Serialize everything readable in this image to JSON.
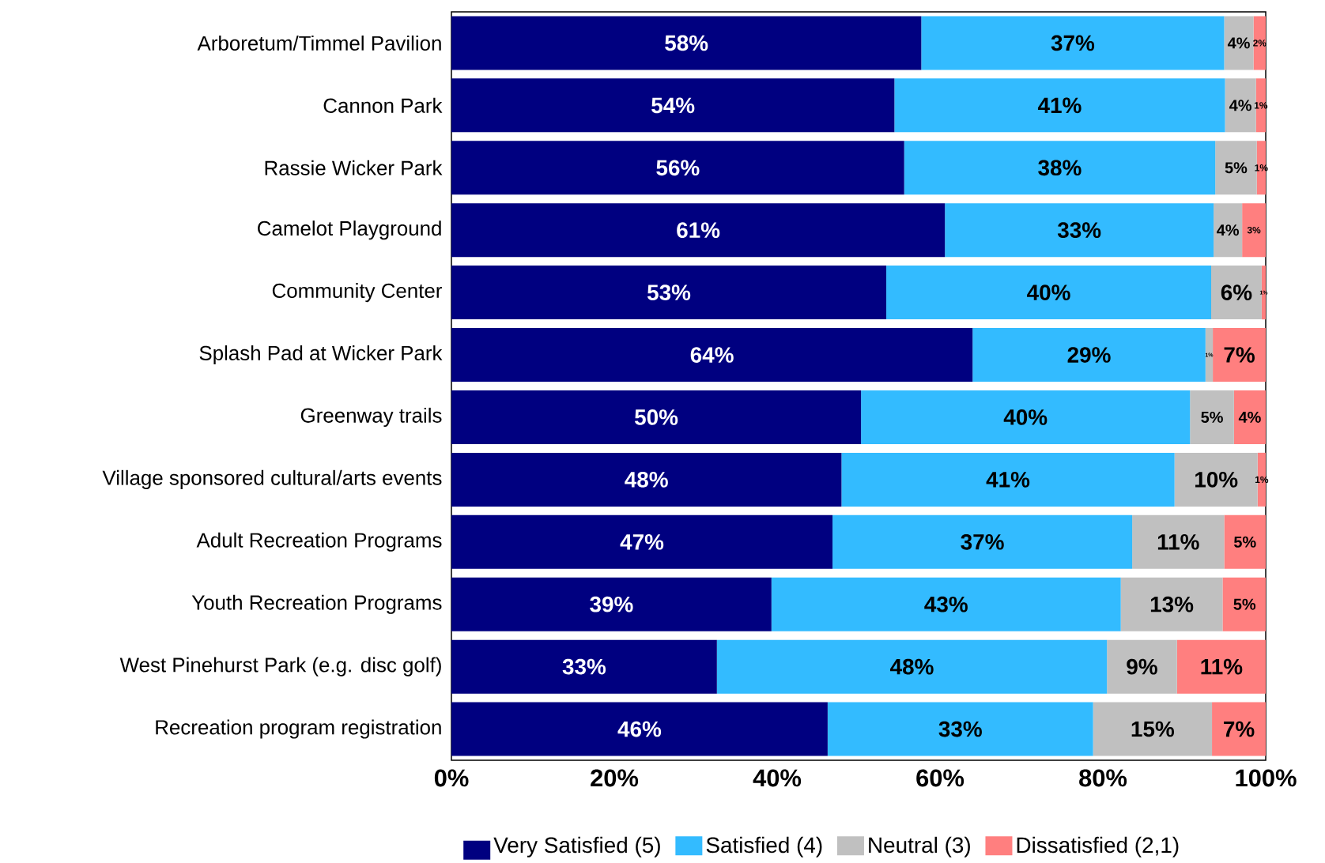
{
  "chart_data": {
    "type": "bar",
    "orientation": "horizontal",
    "stacked": true,
    "legend": "bottom",
    "categories": [
      "Arboretum/Timmel Pavilion",
      "Cannon Park",
      "Rassie Wicker Park",
      "Camelot Playground",
      "Community Center",
      "Splash Pad at Wicker Park",
      "Greenway trails",
      "Village sponsored cultural/arts events",
      "Adult Recreation Programs",
      "Youth Recreation Programs",
      "West Pinehurst Park (e.g. disc golf)",
      "Recreation program registration"
    ],
    "xlim": [
      0,
      100
    ],
    "xticks": [
      {
        "value": 0,
        "label": "0%"
      },
      {
        "value": 20,
        "label": "20%"
      },
      {
        "value": 40,
        "label": "40%"
      },
      {
        "value": 60,
        "label": "60%"
      },
      {
        "value": 80,
        "label": "80%"
      },
      {
        "value": 100,
        "label": "100%"
      }
    ],
    "series": [
      {
        "name": "Very Satisfied (5)",
        "color": "#000080",
        "values": [
          57.7,
          54.4,
          55.6,
          60.6,
          53.4,
          64.0,
          50.3,
          47.9,
          46.8,
          39.3,
          32.6,
          46.2
        ],
        "value_labels": [
          "58%",
          "54%",
          "56%",
          "61%",
          "53%",
          "64%",
          "50%",
          "48%",
          "47%",
          "39%",
          "33%",
          "46%"
        ]
      },
      {
        "name": "Satisfied (4)",
        "color": "#33bbff",
        "values": [
          37.2,
          40.6,
          38.2,
          33.0,
          39.9,
          28.6,
          40.4,
          40.9,
          36.8,
          42.9,
          47.9,
          32.6
        ],
        "value_labels": [
          "37%",
          "41%",
          "38%",
          "33%",
          "40%",
          "29%",
          "40%",
          "41%",
          "37%",
          "43%",
          "48%",
          "33%"
        ]
      },
      {
        "name": "Neutral (3)",
        "color": "#c0c0c0",
        "values": [
          3.6,
          3.8,
          5.1,
          3.5,
          6.2,
          0.9,
          5.4,
          10.2,
          11.3,
          12.5,
          8.6,
          14.6
        ],
        "value_labels": [
          "4%",
          "4%",
          "5%",
          "4%",
          "6%",
          "1%",
          "5%",
          "10%",
          "11%",
          "13%",
          "9%",
          "15%"
        ]
      },
      {
        "name": "Dissatisfied (2,1)",
        "color": "#ff7f7f",
        "values": [
          1.5,
          1.2,
          1.1,
          2.9,
          0.5,
          6.5,
          3.9,
          1.0,
          5.1,
          5.4,
          10.9,
          6.6
        ],
        "value_labels": [
          "2%",
          "1%",
          "1%",
          "3%",
          "1%",
          "7%",
          "4%",
          "1%",
          "5%",
          "5%",
          "11%",
          "7%"
        ]
      }
    ]
  }
}
